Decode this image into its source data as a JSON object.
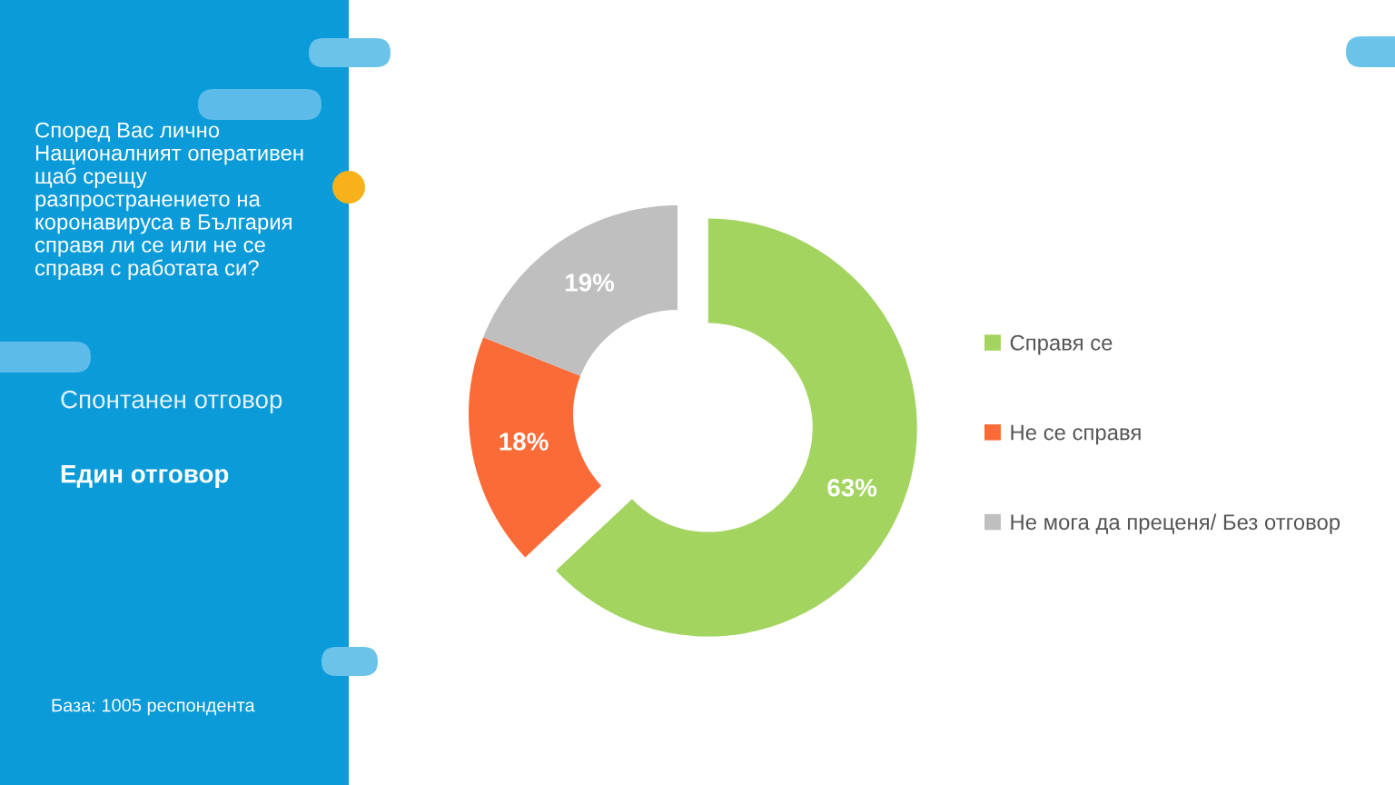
{
  "chart_data": {
    "type": "donut",
    "title": "Според Вас лично\nНационалният оперативен\nщаб срещу\nразпространението на\nкоронавируса в България\nсправя ли се или не се\nсправя с работата си?",
    "subtitle": "Спонтанен отговор",
    "annotations": [
      "Един отговор",
      "База: 1005 респондента"
    ],
    "categories": [
      "Справя се",
      "Не се справя",
      "Не мога да преценя/ Без отговор"
    ],
    "values": [
      63,
      18,
      19
    ],
    "colors": [
      "#a3d45f",
      "#fb6b37",
      "#bfbfbf"
    ],
    "value_labels": [
      "63%",
      "18%",
      "19%"
    ],
    "legend": "right"
  }
}
